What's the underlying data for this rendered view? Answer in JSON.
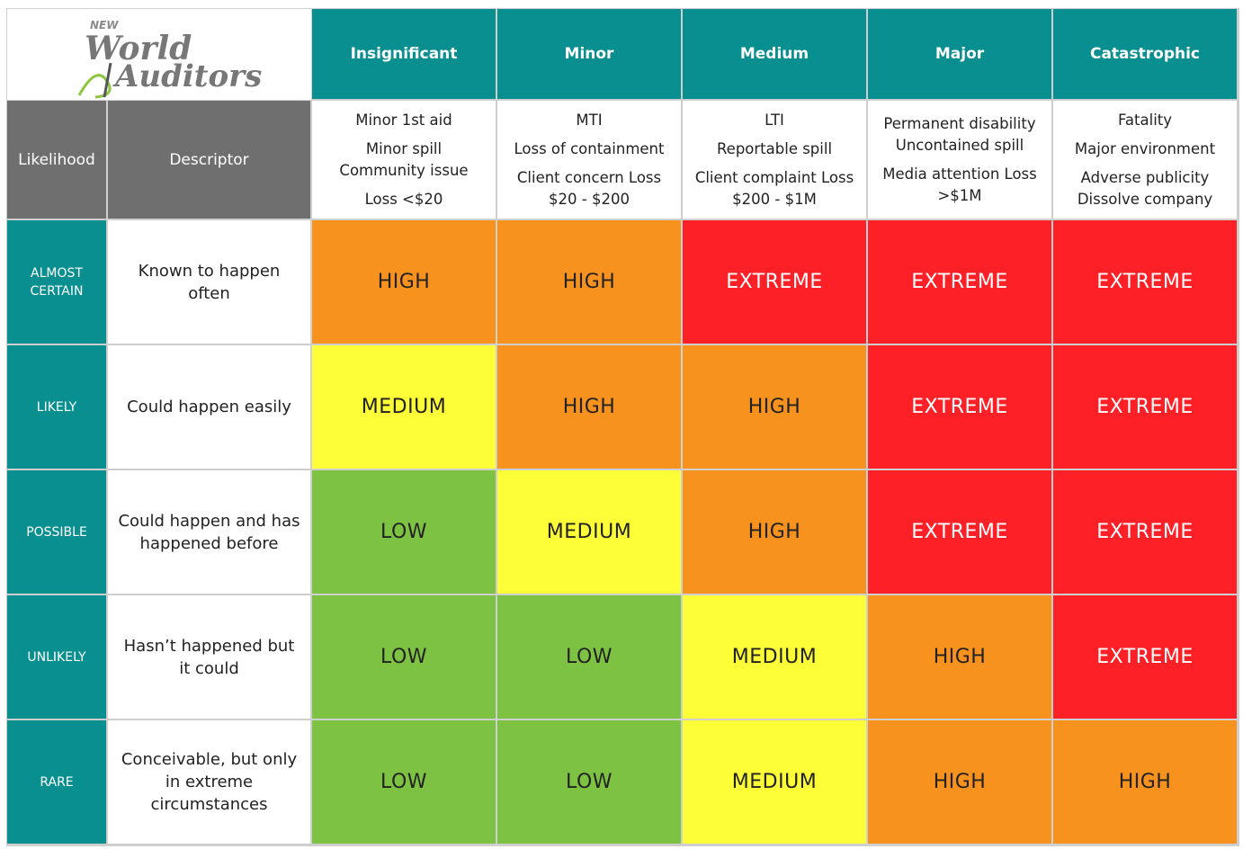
{
  "logo": {
    "prefix": "NEW",
    "line1": "World",
    "line2": "Auditors"
  },
  "header": {
    "likelihood": "Likelihood",
    "descriptor": "Descriptor",
    "consequences": [
      "Insignificant",
      "Minor",
      "Medium",
      "Major",
      "Catastrophic"
    ],
    "consequence_details": [
      [
        [
          "Minor 1st aid"
        ],
        [
          "Minor spill",
          "Community issue"
        ],
        [
          "Loss <$20"
        ]
      ],
      [
        [
          "MTI"
        ],
        [
          "Loss of containment"
        ],
        [
          "Client concern Loss",
          "$20 - $200"
        ]
      ],
      [
        [
          "LTI"
        ],
        [
          "Reportable spill"
        ],
        [
          "Client complaint  Loss",
          "$200 - $1M"
        ]
      ],
      [
        [
          "Permanent disability",
          "Uncontained spill"
        ],
        [
          "Media attention Loss",
          ">$1M"
        ]
      ],
      [
        [
          "Fatality"
        ],
        [
          "Major environment"
        ],
        [
          "Adverse publicity",
          "Dissolve company"
        ]
      ]
    ]
  },
  "rating_colors": {
    "LOW": "#7dc242",
    "MEDIUM": "#fdfd38",
    "HIGH": "#f7921e",
    "EXTREME": "#fe2027"
  },
  "rating_text_colors": {
    "LOW": "#222222",
    "MEDIUM": "#222222",
    "HIGH": "#222222",
    "EXTREME": "#ffffff"
  },
  "rows": [
    {
      "likelihood": "ALMOST CERTAIN",
      "descriptor": "Known to happen often",
      "ratings": [
        "HIGH",
        "HIGH",
        "EXTREME",
        "EXTREME",
        "EXTREME"
      ]
    },
    {
      "likelihood": "LIKELY",
      "descriptor": "Could happen easily",
      "ratings": [
        "MEDIUM",
        "HIGH",
        "HIGH",
        "EXTREME",
        "EXTREME"
      ]
    },
    {
      "likelihood": "POSSIBLE",
      "descriptor": "Could happen and has happened before",
      "ratings": [
        "LOW",
        "MEDIUM",
        "HIGH",
        "EXTREME",
        "EXTREME"
      ]
    },
    {
      "likelihood": "UNLIKELY",
      "descriptor": "Hasn’t happened but it could",
      "ratings": [
        "LOW",
        "LOW",
        "MEDIUM",
        "HIGH",
        "EXTREME"
      ]
    },
    {
      "likelihood": "RARE",
      "descriptor": "Conceivable, but only in extreme circumstances",
      "ratings": [
        "LOW",
        "LOW",
        "MEDIUM",
        "HIGH",
        "HIGH"
      ]
    }
  ]
}
